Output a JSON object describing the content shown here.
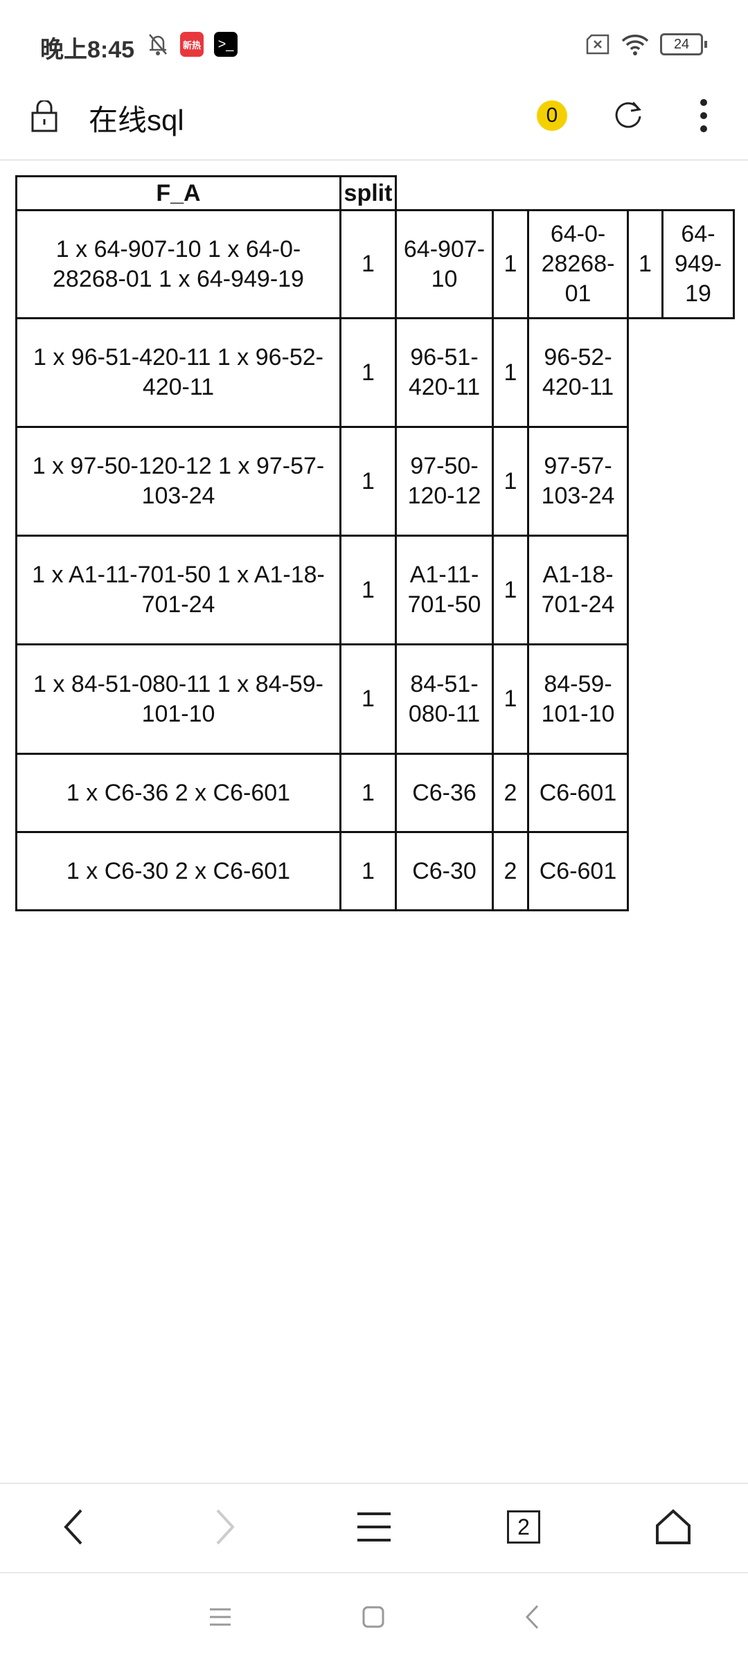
{
  "status_bar": {
    "time": "晚上8:45",
    "icons": [
      "bell-muted-icon",
      "news-app-icon",
      "terminal-app-icon",
      "sim-x-icon",
      "wifi-icon",
      "battery-icon"
    ],
    "news_app_label": "新热",
    "battery_level": "24"
  },
  "toolbar": {
    "title": "在线sql",
    "badge_count": "0",
    "badge_color": "#f5d000"
  },
  "table": {
    "headers": [
      "F_A",
      "split"
    ],
    "rows": [
      {
        "fa": "1 x 64-907-10  1 x 64-0-28268-01  1 x 64-949-19",
        "split": "1",
        "parts": [
          "64-907-10",
          "1",
          "64-0-28268-01",
          "1",
          "64-949-19"
        ]
      },
      {
        "fa": "1 x 96-51-420-11  1 x 96-52-420-11",
        "split": "1",
        "parts": [
          "96-51-420-11",
          "1",
          "96-52-420-11"
        ]
      },
      {
        "fa": "1 x 97-50-120-12  1 x 97-57-103-24",
        "split": "1",
        "parts": [
          "97-50-120-12",
          "1",
          "97-57-103-24"
        ]
      },
      {
        "fa": "1 x A1-11-701-50  1 x A1-18-701-24",
        "split": "1",
        "parts": [
          "A1-11-701-50",
          "1",
          "A1-18-701-24"
        ]
      },
      {
        "fa": "1 x 84-51-080-11  1 x 84-59-101-10",
        "split": "1",
        "parts": [
          "84-51-080-11",
          "1",
          "84-59-101-10"
        ]
      },
      {
        "fa": "1 x C6-36  2 x C6-601",
        "split": "1",
        "parts": [
          "C6-36",
          "2",
          "C6-601"
        ]
      },
      {
        "fa": "1 x C6-30  2 x C6-601",
        "split": "1",
        "parts": [
          "C6-30",
          "2",
          "C6-601"
        ]
      }
    ]
  },
  "bottom_nav": [
    "back-icon",
    "forward-icon",
    "menu-icon",
    "tabs-icon",
    "home-icon"
  ],
  "tab_count": "2",
  "system_nav": [
    "recents-icon",
    "home-icon",
    "back-icon"
  ]
}
